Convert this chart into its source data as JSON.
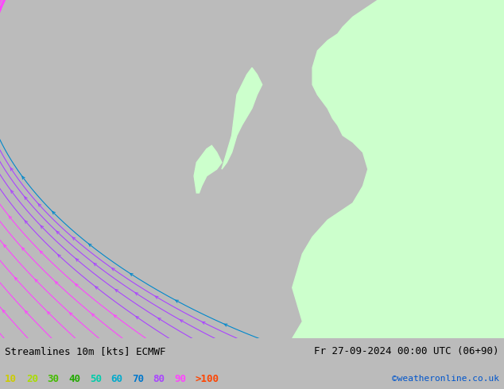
{
  "title_left": "Streamlines 10m [kts] ECMWF",
  "title_right": "Fr 27-09-2024 00:00 UTC (06+90)",
  "credit": "©weatheronline.co.uk",
  "legend_labels": [
    "10",
    "20",
    "30",
    "40",
    "50",
    "60",
    "70",
    "80",
    "90",
    ">100"
  ],
  "legend_colors": [
    "#cccc00",
    "#aadd00",
    "#44bb00",
    "#22aa00",
    "#00ccaa",
    "#00bbcc",
    "#0099dd",
    "#cc44ff",
    "#ff44ff",
    "#ff4400"
  ],
  "bg_color": "#d8d8d8",
  "land_color_right": "#ccffcc",
  "land_color_islands": "#ccffcc",
  "fig_width": 6.34,
  "fig_height": 4.9,
  "dpi": 100,
  "font_size_title": 9,
  "font_size_legend": 9,
  "font_size_credit": 8
}
